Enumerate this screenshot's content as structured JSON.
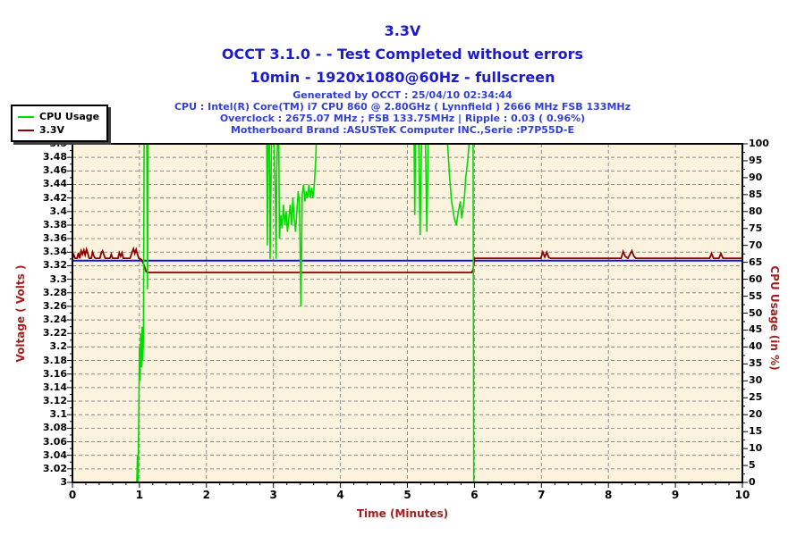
{
  "header": {
    "title": "3.3V",
    "title_line2": "OCCT 3.1.0 -  - Test Completed without errors",
    "title_line3": "10min - 1920x1080@60Hz - fullscreen",
    "title_color": "#1c1ccd",
    "subtitle_color": "#3340d6",
    "subtitle_lines": [
      "Generated by OCCT : 25/04/10 02:34:44",
      "CPU : Intel(R) Core(TM) i7 CPU 860 @ 2.80GHz ( Lynnfield ) 2666 MHz FSB 133MHz",
      "Overclock : 2675.07 MHz ; FSB 133.75MHz | Ripple : 0.03 ( 0.96%)",
      "Motherboard Brand :ASUSTeK Computer INC.,Serie :P7P55D-E"
    ]
  },
  "legend": {
    "items": [
      {
        "label": "CPU Usage",
        "color": "#00dc00"
      },
      {
        "label": "3.3V",
        "color": "#8e0000"
      }
    ]
  },
  "axes": {
    "label_color": "#9e2121",
    "x": {
      "title": "Time (Minutes)",
      "ticks": [
        "0",
        "1",
        "2",
        "3",
        "4",
        "5",
        "6",
        "7",
        "8",
        "9",
        "10"
      ]
    },
    "y_left": {
      "title": "Voltage ( Volts )",
      "ticks": [
        "3.5",
        "3.48",
        "3.46",
        "3.44",
        "3.42",
        "3.4",
        "3.38",
        "3.36",
        "3.34",
        "3.32",
        "3.3",
        "3.28",
        "3.26",
        "3.24",
        "3.22",
        "3.2",
        "3.18",
        "3.16",
        "3.14",
        "3.12",
        "3.1",
        "3.08",
        "3.06",
        "3.04",
        "3.02",
        "3"
      ]
    },
    "y_right": {
      "title": "CPU Usage (in %)",
      "ticks": [
        "100",
        "95",
        "90",
        "85",
        "80",
        "75",
        "70",
        "65",
        "60",
        "55",
        "50",
        "45",
        "40",
        "35",
        "30",
        "25",
        "20",
        "15",
        "10",
        "5",
        "0"
      ]
    }
  },
  "chart_data": {
    "type": "line",
    "title": "3.3V",
    "xlabel": "Time (Minutes)",
    "ylabel_left": "Voltage ( Volts )",
    "ylabel_right": "CPU Usage (in %)",
    "xlim": [
      0,
      10
    ],
    "ylim_left": [
      3,
      3.5
    ],
    "ylim_right": [
      0,
      100
    ],
    "grid": true,
    "plot_bg": "#fcf3df",
    "grid_color": "#8c8c8c",
    "border_color": "#000000",
    "series": [
      {
        "name": "reference-line",
        "axis": "left",
        "color": "#1212e0",
        "width": 2,
        "points": [
          [
            0,
            3.3275
          ],
          [
            10,
            3.3275
          ]
        ]
      },
      {
        "name": "3.3V",
        "axis": "left",
        "color": "#8e0000",
        "width": 1.8,
        "points": [
          [
            0,
            3.331
          ],
          [
            0.02,
            3.336
          ],
          [
            0.04,
            3.331
          ],
          [
            0.07,
            3.331
          ],
          [
            0.09,
            3.339
          ],
          [
            0.1,
            3.334
          ],
          [
            0.11,
            3.331
          ],
          [
            0.13,
            3.342
          ],
          [
            0.15,
            3.337
          ],
          [
            0.17,
            3.343
          ],
          [
            0.19,
            3.336
          ],
          [
            0.21,
            3.344
          ],
          [
            0.23,
            3.338
          ],
          [
            0.25,
            3.331
          ],
          [
            0.28,
            3.331
          ],
          [
            0.3,
            3.34
          ],
          [
            0.32,
            3.334
          ],
          [
            0.34,
            3.331
          ],
          [
            0.41,
            3.331
          ],
          [
            0.43,
            3.339
          ],
          [
            0.45,
            3.342
          ],
          [
            0.47,
            3.336
          ],
          [
            0.49,
            3.331
          ],
          [
            0.56,
            3.331
          ],
          [
            0.58,
            3.337
          ],
          [
            0.6,
            3.331
          ],
          [
            0.68,
            3.331
          ],
          [
            0.7,
            3.339
          ],
          [
            0.72,
            3.334
          ],
          [
            0.74,
            3.339
          ],
          [
            0.76,
            3.331
          ],
          [
            0.86,
            3.331
          ],
          [
            0.89,
            3.34
          ],
          [
            0.91,
            3.345
          ],
          [
            0.93,
            3.338
          ],
          [
            0.95,
            3.344
          ],
          [
            0.97,
            3.337
          ],
          [
            0.99,
            3.331
          ],
          [
            1.03,
            3.329
          ],
          [
            1.07,
            3.321
          ],
          [
            1.1,
            3.311
          ],
          [
            1.13,
            3.31
          ],
          [
            5.96,
            3.31
          ],
          [
            5.98,
            3.314
          ],
          [
            6.0,
            3.331
          ],
          [
            6.99,
            3.331
          ],
          [
            7.02,
            3.34
          ],
          [
            7.05,
            3.333
          ],
          [
            7.08,
            3.34
          ],
          [
            7.11,
            3.332
          ],
          [
            7.14,
            3.331
          ],
          [
            8.19,
            3.331
          ],
          [
            8.22,
            3.341
          ],
          [
            8.25,
            3.334
          ],
          [
            8.29,
            3.331
          ],
          [
            8.35,
            3.342
          ],
          [
            8.38,
            3.334
          ],
          [
            8.41,
            3.331
          ],
          [
            9.51,
            3.331
          ],
          [
            9.54,
            3.338
          ],
          [
            9.57,
            3.331
          ],
          [
            9.65,
            3.331
          ],
          [
            9.68,
            3.338
          ],
          [
            9.71,
            3.331
          ],
          [
            10,
            3.331
          ]
        ]
      },
      {
        "name": "CPU Usage",
        "axis": "right",
        "color": "#00dc00",
        "width": 1.6,
        "points": [
          [
            0,
            0
          ],
          [
            0.96,
            0
          ],
          [
            0.97,
            8
          ],
          [
            0.98,
            0
          ],
          [
            1.0,
            40
          ],
          [
            1.01,
            30
          ],
          [
            1.02,
            44
          ],
          [
            1.03,
            34
          ],
          [
            1.04,
            46
          ],
          [
            1.05,
            36
          ],
          [
            1.06,
            44
          ],
          [
            1.07,
            100
          ],
          [
            1.11,
            100
          ],
          [
            1.12,
            57
          ],
          [
            1.13,
            100
          ],
          [
            2.9,
            100
          ],
          [
            2.91,
            70
          ],
          [
            2.92,
            100
          ],
          [
            2.94,
            100
          ],
          [
            2.95,
            66
          ],
          [
            2.96,
            82
          ],
          [
            2.97,
            100
          ],
          [
            3.01,
            100
          ],
          [
            3.03,
            84
          ],
          [
            3.04,
            66
          ],
          [
            3.05,
            92
          ],
          [
            3.06,
            100
          ],
          [
            3.08,
            100
          ],
          [
            3.09,
            72
          ],
          [
            3.11,
            79
          ],
          [
            3.13,
            75
          ],
          [
            3.15,
            82
          ],
          [
            3.17,
            76
          ],
          [
            3.19,
            80
          ],
          [
            3.21,
            74
          ],
          [
            3.23,
            78
          ],
          [
            3.25,
            82
          ],
          [
            3.27,
            76
          ],
          [
            3.29,
            84
          ],
          [
            3.31,
            78
          ],
          [
            3.33,
            74
          ],
          [
            3.35,
            80
          ],
          [
            3.37,
            86
          ],
          [
            3.39,
            82
          ],
          [
            3.41,
            52
          ],
          [
            3.43,
            85
          ],
          [
            3.45,
            88
          ],
          [
            3.47,
            83
          ],
          [
            3.49,
            86
          ],
          [
            3.51,
            84
          ],
          [
            3.53,
            88
          ],
          [
            3.55,
            84
          ],
          [
            3.57,
            87
          ],
          [
            3.59,
            84
          ],
          [
            3.61,
            88
          ],
          [
            3.63,
            95
          ],
          [
            3.64,
            100
          ],
          [
            5.1,
            100
          ],
          [
            5.11,
            79
          ],
          [
            5.12,
            100
          ],
          [
            5.17,
            100
          ],
          [
            5.19,
            73
          ],
          [
            5.21,
            100
          ],
          [
            5.27,
            100
          ],
          [
            5.29,
            74
          ],
          [
            5.31,
            100
          ],
          [
            5.6,
            100
          ],
          [
            5.63,
            90
          ],
          [
            5.66,
            83
          ],
          [
            5.7,
            78
          ],
          [
            5.73,
            76
          ],
          [
            5.76,
            80
          ],
          [
            5.79,
            83
          ],
          [
            5.81,
            78
          ],
          [
            5.83,
            81
          ],
          [
            5.85,
            84
          ],
          [
            5.87,
            90
          ],
          [
            5.9,
            95
          ],
          [
            5.92,
            100
          ],
          [
            5.98,
            100
          ],
          [
            5.99,
            0
          ],
          [
            10,
            0
          ]
        ]
      }
    ]
  }
}
